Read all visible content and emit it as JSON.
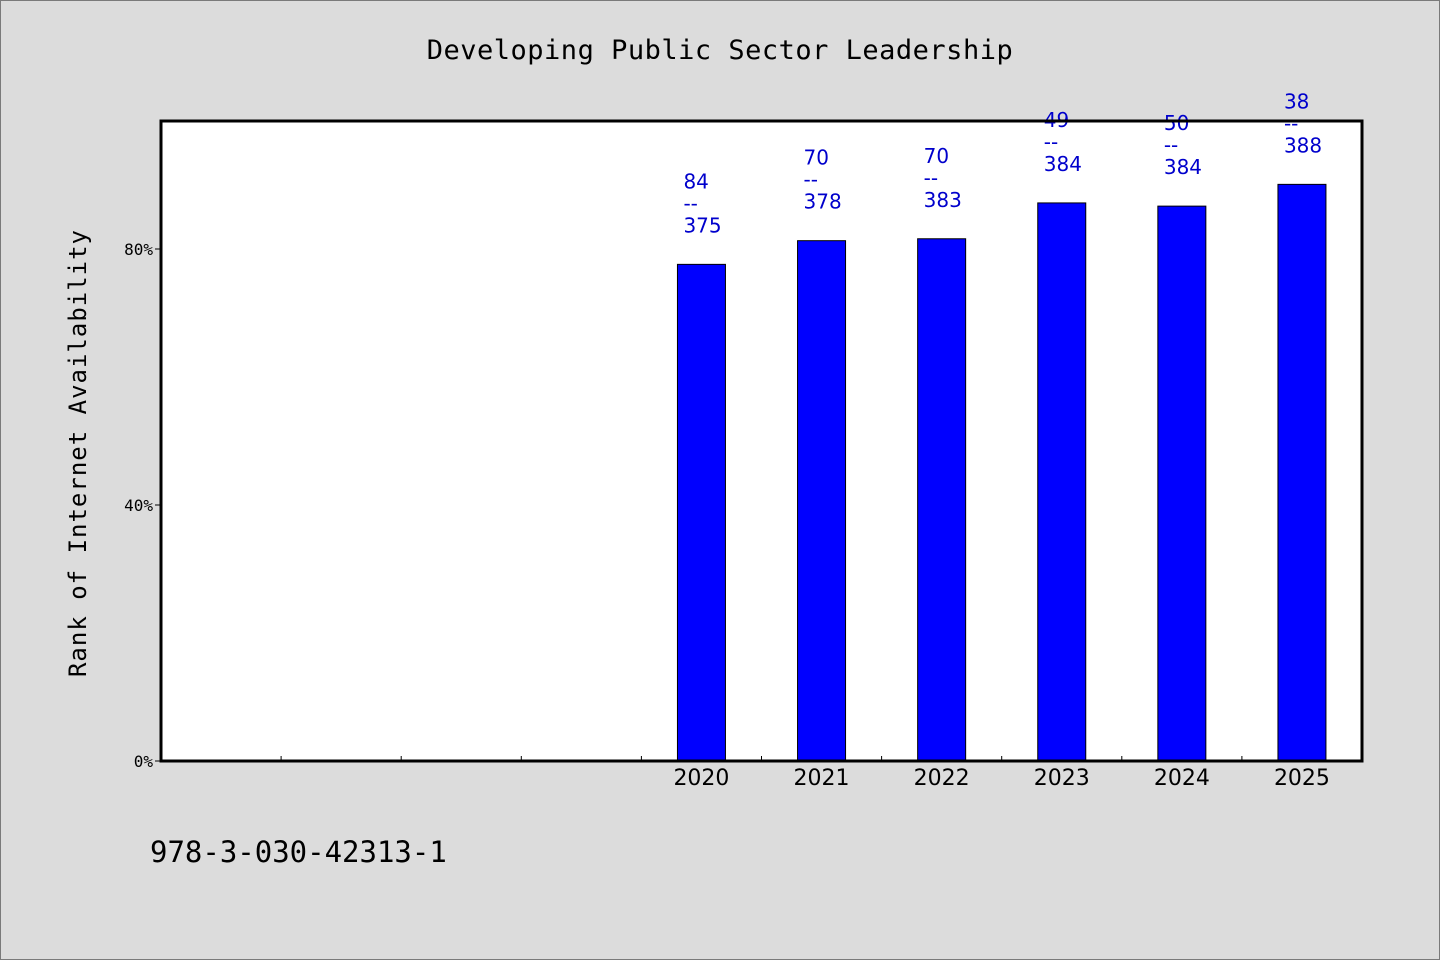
{
  "chart_data": {
    "type": "bar",
    "title": "Developing Public Sector Leadership",
    "ylabel": "Rank of Internet Availability",
    "xlabel": "",
    "ylim": [
      0,
      100
    ],
    "y_ticks": [
      0,
      40,
      80
    ],
    "y_tick_labels": [
      "0%",
      "40%",
      "80%"
    ],
    "num_slots": 10,
    "categories": [
      "2020",
      "2021",
      "2022",
      "2023",
      "2024",
      "2025"
    ],
    "values": [
      77.6,
      81.3,
      81.6,
      87.2,
      86.7,
      90.1
    ],
    "bar_labels": [
      [
        "84",
        "--",
        "375"
      ],
      [
        "70",
        "--",
        "378"
      ],
      [
        "70",
        "--",
        "383"
      ],
      [
        "49",
        "--",
        "384"
      ],
      [
        "50",
        "--",
        "384"
      ],
      [
        "38",
        "--",
        "388"
      ]
    ],
    "bar_color": "#0000ff",
    "label_color": "#0000cc",
    "grid": false,
    "legend": "none"
  },
  "footnote": "978-3-030-42313-1"
}
